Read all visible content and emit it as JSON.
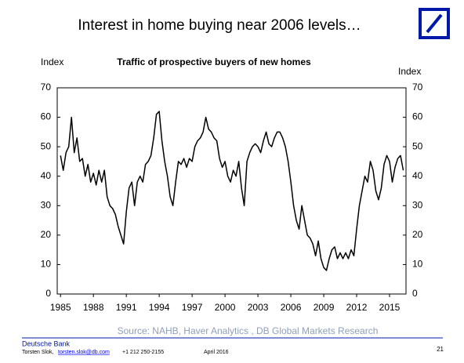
{
  "slide_title": "Interest in home buying near 2006 levels…",
  "chart_data": {
    "type": "line",
    "title": "Traffic of prospective buyers of new homes",
    "y_label": "Index",
    "y2_label": "Index",
    "source": "Source: NAHB, Haver Analytics , DB Global Markets Research",
    "x": [
      1985,
      1985.25,
      1985.5,
      1985.75,
      1986,
      1986.25,
      1986.5,
      1986.75,
      1987,
      1987.25,
      1987.5,
      1987.75,
      1988,
      1988.25,
      1988.5,
      1988.75,
      1989,
      1989.25,
      1989.5,
      1989.75,
      1990,
      1990.25,
      1990.5,
      1990.75,
      1991,
      1991.25,
      1991.5,
      1991.75,
      1992,
      1992.25,
      1992.5,
      1992.75,
      1993,
      1993.25,
      1993.5,
      1993.75,
      1994,
      1994.25,
      1994.5,
      1994.75,
      1995,
      1995.25,
      1995.5,
      1995.75,
      1996,
      1996.25,
      1996.5,
      1996.75,
      1997,
      1997.25,
      1997.5,
      1997.75,
      1998,
      1998.25,
      1998.5,
      1998.75,
      1999,
      1999.25,
      1999.5,
      1999.75,
      2000,
      2000.25,
      2000.5,
      2000.75,
      2001,
      2001.25,
      2001.5,
      2001.75,
      2002,
      2002.25,
      2002.5,
      2002.75,
      2003,
      2003.25,
      2003.5,
      2003.75,
      2004,
      2004.25,
      2004.5,
      2004.75,
      2005,
      2005.25,
      2005.5,
      2005.75,
      2006,
      2006.25,
      2006.5,
      2006.75,
      2007,
      2007.25,
      2007.5,
      2007.75,
      2008,
      2008.25,
      2008.5,
      2008.75,
      2009,
      2009.25,
      2009.5,
      2009.75,
      2010,
      2010.25,
      2010.5,
      2010.75,
      2011,
      2011.25,
      2011.5,
      2011.75,
      2012,
      2012.25,
      2012.5,
      2012.75,
      2013,
      2013.25,
      2013.5,
      2013.75,
      2014,
      2014.25,
      2014.5,
      2014.75,
      2015,
      2015.25,
      2015.5,
      2015.75,
      2016,
      2016.25
    ],
    "series": [
      {
        "name": "Traffic of prospective buyers",
        "color": "#000000",
        "values": [
          47,
          42,
          48,
          50,
          60,
          48,
          53,
          45,
          46,
          40,
          44,
          38,
          41,
          37,
          42,
          38,
          42,
          33,
          30,
          29,
          27,
          23,
          20,
          17,
          28,
          36,
          38,
          30,
          38,
          40,
          38,
          44,
          45,
          47,
          53,
          61,
          62,
          52,
          45,
          40,
          33,
          30,
          38,
          45,
          44,
          46,
          43,
          46,
          45,
          50,
          52,
          53,
          55,
          60,
          56,
          55,
          53,
          52,
          46,
          43,
          45,
          40,
          38,
          42,
          40,
          45,
          36,
          30,
          45,
          48,
          50,
          51,
          50,
          48,
          52,
          55,
          51,
          50,
          53,
          55,
          55,
          53,
          50,
          45,
          38,
          30,
          25,
          22,
          30,
          25,
          20,
          19,
          17,
          13,
          18,
          12,
          9,
          8,
          12,
          15,
          16,
          12,
          14,
          12,
          14,
          12,
          15,
          13,
          22,
          30,
          35,
          40,
          38,
          45,
          42,
          35,
          32,
          36,
          44,
          47,
          45,
          38,
          43,
          46,
          47,
          42
        ]
      }
    ],
    "xlim": [
      1984.7,
      2016.5
    ],
    "xticks": [
      1985,
      1988,
      1991,
      1994,
      1997,
      2000,
      2003,
      2006,
      2009,
      2012,
      2015
    ],
    "ylim": [
      0,
      70
    ],
    "yticks": [
      0,
      10,
      20,
      30,
      40,
      50,
      60,
      70
    ],
    "y2lim": [
      0,
      70
    ],
    "y2ticks": [
      0,
      10,
      20,
      30,
      40,
      50,
      60,
      70
    ]
  },
  "footer": {
    "company": "Deutsche Bank",
    "author": "Torsten Slok,",
    "email": "torsten.slok@db.com",
    "phone": "+1 212 250-2155",
    "date": "April 2016",
    "page": "21"
  }
}
